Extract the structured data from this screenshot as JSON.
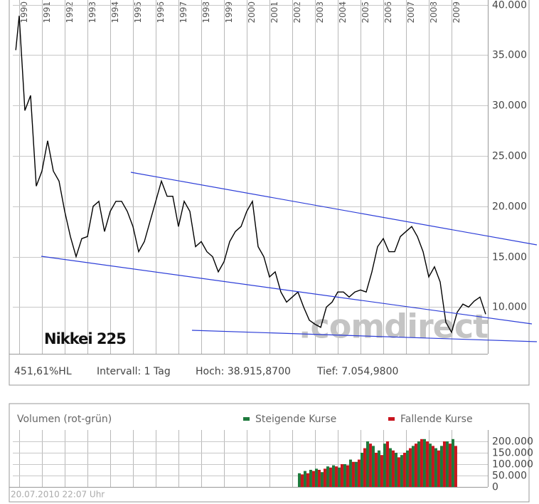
{
  "chart_data": [
    {
      "type": "line",
      "title": "Nikkei 225",
      "watermark": ".comdirect",
      "stats": [
        "451,61%HL",
        "Intervall: 1 Tag",
        "Hoch: 38.915,8700",
        "Tief: 7.054,9800"
      ],
      "color": "#000000",
      "x": [
        1989.85,
        1990.0,
        1990.25,
        1990.5,
        1990.75,
        1991.0,
        1991.25,
        1991.5,
        1991.75,
        1992.0,
        1992.25,
        1992.5,
        1992.75,
        1993.0,
        1993.25,
        1993.5,
        1993.75,
        1994.0,
        1994.25,
        1994.5,
        1994.75,
        1995.0,
        1995.25,
        1995.5,
        1995.75,
        1996.0,
        1996.25,
        1996.5,
        1996.75,
        1997.0,
        1997.25,
        1997.5,
        1997.75,
        1998.0,
        1998.25,
        1998.5,
        1998.75,
        1999.0,
        1999.25,
        1999.5,
        1999.75,
        2000.0,
        2000.25,
        2000.5,
        2000.75,
        2001.0,
        2001.25,
        2001.5,
        2001.75,
        2002.0,
        2002.25,
        2002.5,
        2002.75,
        2003.0,
        2003.25,
        2003.5,
        2003.75,
        2004.0,
        2004.25,
        2004.5,
        2004.75,
        2005.0,
        2005.25,
        2005.5,
        2005.75,
        2006.0,
        2006.25,
        2006.5,
        2006.75,
        2007.0,
        2007.25,
        2007.5,
        2007.75,
        2008.0,
        2008.25,
        2008.5,
        2008.75,
        2009.0,
        2009.25,
        2009.5,
        2009.75,
        2010.0,
        2010.25,
        2010.5
      ],
      "values": [
        35500,
        38900,
        29500,
        31000,
        22000,
        23500,
        26500,
        23500,
        22500,
        19500,
        17000,
        15000,
        16800,
        17000,
        20000,
        20500,
        17500,
        19500,
        20500,
        20500,
        19500,
        18000,
        15500,
        16500,
        18500,
        20500,
        22500,
        21000,
        21000,
        18000,
        20500,
        19500,
        16000,
        16500,
        15500,
        15000,
        13500,
        14500,
        16500,
        17500,
        18000,
        19500,
        20500,
        16000,
        15000,
        13000,
        13500,
        11500,
        10500,
        11000,
        11500,
        10000,
        8700,
        8300,
        8000,
        10000,
        10500,
        11500,
        11500,
        11000,
        11500,
        11700,
        11500,
        13500,
        16000,
        16800,
        15500,
        15500,
        17000,
        17500,
        18000,
        17000,
        15500,
        13000,
        14000,
        12500,
        8500,
        7500,
        9500,
        10300,
        10000,
        10600,
        11000,
        9300
      ],
      "xlim": [
        1989.72,
        2010.595
      ],
      "xticks": [
        1990,
        1991,
        1992,
        1993,
        1994,
        1995,
        1996,
        1997,
        1998,
        1999,
        2000,
        2001,
        2002,
        2003,
        2004,
        2005,
        2006,
        2007,
        2008,
        2009
      ],
      "ylim": [
        5370,
        40470
      ],
      "yticks": [
        {
          "value": 10000,
          "label": "10.000"
        },
        {
          "value": 15000,
          "label": "15.000"
        },
        {
          "value": 20000,
          "label": "20.000"
        },
        {
          "value": 25000,
          "label": "25.000"
        },
        {
          "value": 30000,
          "label": "30.000"
        },
        {
          "value": 35000,
          "label": "35.000"
        },
        {
          "value": 40000,
          "label": "40.000"
        }
      ],
      "grid": true
    },
    {
      "type": "bar",
      "title": "Volumen (rot-grün)",
      "timestamp": "20.07.2010 22:07 Uhr",
      "x": [
        2002.375,
        2002.625,
        2002.875,
        2003.125,
        2003.375,
        2003.625,
        2003.875,
        2004.125,
        2004.375,
        2004.625,
        2004.875,
        2005.125,
        2005.375,
        2005.625,
        2005.875,
        2006.125,
        2006.375,
        2006.625,
        2006.875,
        2007.125,
        2007.375,
        2007.625,
        2007.875,
        2008.125,
        2008.375,
        2008.625,
        2008.875,
        2009.125
      ],
      "series": [
        {
          "name": "Steigende Kurse",
          "color": "#1e7a3c",
          "values": [
            60000,
            70000,
            75000,
            80000,
            65000,
            90000,
            95000,
            85000,
            100000,
            120000,
            110000,
            150000,
            200000,
            180000,
            160000,
            190000,
            170000,
            150000,
            140000,
            160000,
            180000,
            200000,
            210000,
            190000,
            170000,
            180000,
            200000,
            210000
          ]
        },
        {
          "name": "Fallende Kurse",
          "color": "#c8141e",
          "values": [
            55000,
            60000,
            70000,
            75000,
            80000,
            85000,
            90000,
            100000,
            95000,
            110000,
            120000,
            170000,
            190000,
            150000,
            140000,
            200000,
            160000,
            130000,
            150000,
            170000,
            190000,
            210000,
            200000,
            180000,
            160000,
            200000,
            190000,
            180000
          ]
        }
      ],
      "xlim": [
        1989.72,
        2010.595
      ],
      "xticks": [
        1990,
        1991,
        1992,
        1993,
        1994,
        1995,
        1996,
        1997,
        1998,
        1999,
        2000,
        2001,
        2002,
        2003,
        2004,
        2005,
        2006,
        2007,
        2008,
        2009
      ],
      "ylim": [
        0,
        250000
      ],
      "yticks": [
        0,
        {
          "value": 50000,
          "label": "50.000"
        },
        {
          "value": 100000,
          "label": "100.000"
        },
        {
          "value": 150000,
          "label": "150.000"
        },
        {
          "value": 200000,
          "label": "200.000"
        }
      ],
      "grid": true
    }
  ]
}
